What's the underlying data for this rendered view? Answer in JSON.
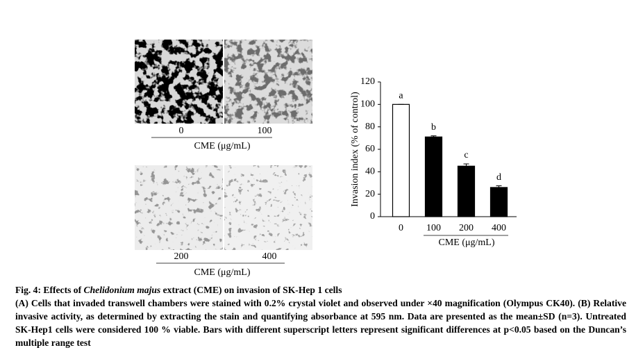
{
  "panel_a": {
    "top_labels": [
      "0",
      "100"
    ],
    "top_axis_label": "CME (μg/mL)",
    "bottom_labels": [
      "200",
      "400"
    ],
    "bottom_axis_label": "CME (μg/mL)"
  },
  "chart_data": {
    "type": "bar",
    "categories": [
      "0",
      "100",
      "200",
      "400"
    ],
    "values": [
      100,
      71,
      45,
      26
    ],
    "errors": [
      0,
      1,
      2,
      1.5
    ],
    "annotations": [
      "a",
      "b",
      "c",
      "d"
    ],
    "colors": [
      "#ffffff",
      "#000000",
      "#000000",
      "#000000"
    ],
    "ylabel": "Invasion index (% of control)",
    "xlabel": "CME (μg/mL)",
    "ylim": [
      0,
      120
    ],
    "yticks": [
      0,
      20,
      40,
      60,
      80,
      100,
      120
    ]
  },
  "caption": {
    "title_prefix": "Fig. 4: Effects of ",
    "title_italic": "Chelidonium majus",
    "title_suffix": " extract (CME) on invasion of SK-Hep 1 cells",
    "body": "(A) Cells that invaded transwell chambers were stained with 0.2% crystal violet and observed under ×40 magnification (Olympus CK40). (B) Relative invasive activity, as determined by extracting the stain and quantifying absorbance at 595 nm. Data are presented as the mean±SD (n=3). Untreated SK-Hep1 cells were considered 100 % viable. Bars with different superscript letters represent significant differences at p<0.05 based on the Duncan’s multiple range test"
  }
}
